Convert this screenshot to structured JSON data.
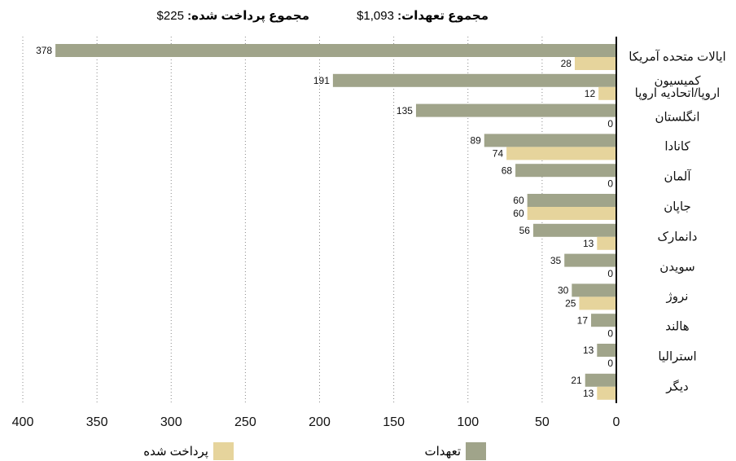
{
  "chart_data": {
    "type": "bar",
    "orientation": "horizontal",
    "reversed": true,
    "totals": [
      {
        "label": "مجموع تعهدات:",
        "value": "$1,093"
      },
      {
        "label": "مجموع پرداخت شده:",
        "value": "$225"
      }
    ],
    "categories": [
      "ایالات متحده آمریکا",
      "کمیسیون\nاروپا/اتحادیه اروپا",
      "انگلستان",
      "کانادا",
      "آلمان",
      "جاپان",
      "دانمارک",
      "سویدن",
      "نروژ",
      "هالند",
      "استرالیا",
      "دیگر"
    ],
    "series": [
      {
        "name": "تعهدات",
        "color": "#a0a48a",
        "values": [
          378,
          191,
          135,
          89,
          68,
          60,
          56,
          35,
          30,
          17,
          13,
          21
        ]
      },
      {
        "name": "پرداخت شده",
        "color": "#e6d49c",
        "values": [
          28,
          12,
          0,
          74,
          0,
          60,
          13,
          0,
          25,
          0,
          0,
          13
        ]
      }
    ],
    "xlim": [
      0,
      400
    ],
    "xticks": [
      0,
      50,
      100,
      150,
      200,
      250,
      300,
      350,
      400
    ],
    "grid": true
  }
}
